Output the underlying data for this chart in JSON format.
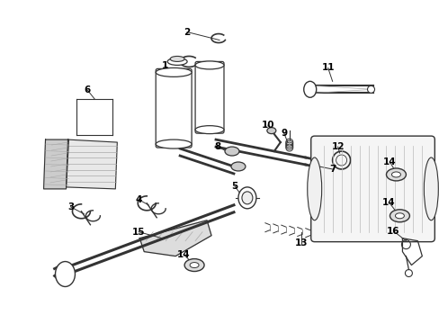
{
  "background_color": "#ffffff",
  "fig_width": 4.89,
  "fig_height": 3.6,
  "dpi": 100,
  "line_color": "#333333",
  "text_color": "#000000",
  "font_size": 7.5
}
